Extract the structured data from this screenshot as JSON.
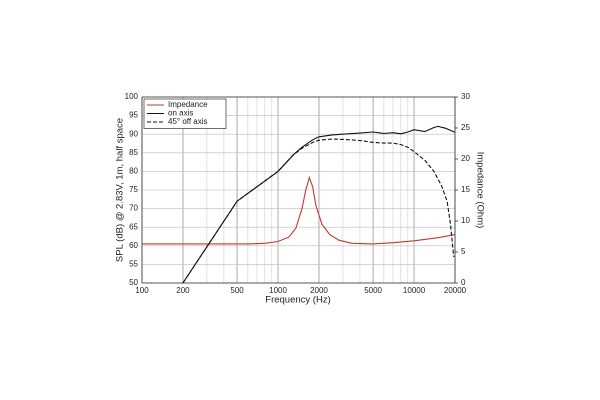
{
  "chart_data": {
    "type": "line",
    "xlabel": "Frequency (Hz)",
    "ylabel": "SPL (dB) @ 2.83V, 1m, half space",
    "y2label": "Impedance (Ohm)",
    "xscale": "log",
    "xlim": [
      100,
      20000
    ],
    "xticks": [
      100,
      200,
      500,
      1000,
      2000,
      5000,
      10000,
      20000
    ],
    "ylim": [
      50,
      100
    ],
    "yticks": [
      50,
      55,
      60,
      65,
      70,
      75,
      80,
      85,
      90,
      95,
      100
    ],
    "y2lim": [
      0,
      30
    ],
    "y2ticks": [
      0,
      5,
      10,
      15,
      20,
      25,
      30
    ],
    "grid": true,
    "legend": "upper left",
    "series": [
      {
        "name": "Impedance",
        "color": "#c0392b",
        "axis": "y2",
        "dash": false,
        "x": [
          100,
          300,
          600,
          800,
          1000,
          1200,
          1350,
          1500,
          1600,
          1700,
          1800,
          1900,
          2100,
          2400,
          2800,
          3500,
          5000,
          7000,
          10000,
          15000,
          20000
        ],
        "values": [
          6.3,
          6.3,
          6.3,
          6.4,
          6.7,
          7.4,
          8.8,
          12,
          15,
          17,
          15.5,
          12.5,
          9.5,
          7.8,
          6.9,
          6.4,
          6.3,
          6.5,
          6.8,
          7.3,
          7.8
        ]
      },
      {
        "name": "on axis",
        "color": "#111111",
        "axis": "y",
        "dash": false,
        "x": [
          200,
          500,
          1000,
          1300,
          1500,
          1800,
          2000,
          2500,
          3000,
          4000,
          5000,
          6000,
          7000,
          8000,
          9000,
          10000,
          12000,
          14000,
          15000,
          17000,
          20000
        ],
        "values": [
          50,
          72,
          80,
          84.5,
          86.5,
          88.5,
          89.3,
          89.8,
          90,
          90.3,
          90.6,
          90.2,
          90.4,
          90.1,
          90.6,
          91.2,
          90.7,
          91.8,
          92.1,
          91.6,
          90.5
        ]
      },
      {
        "name": "45° off axis",
        "color": "#111111",
        "axis": "y",
        "dash": true,
        "x": [
          200,
          500,
          1000,
          1300,
          1500,
          1800,
          2000,
          2500,
          3000,
          4000,
          5000,
          6000,
          7000,
          8000,
          9000,
          10000,
          12000,
          14000,
          16000,
          17500,
          18500,
          19200,
          19600
        ],
        "values": [
          50,
          72,
          80,
          84.5,
          86.2,
          87.8,
          88.4,
          88.7,
          88.6,
          88.3,
          87.8,
          87.6,
          87.6,
          87.2,
          86.5,
          85.3,
          83,
          80,
          76,
          72,
          66,
          60,
          57
        ]
      }
    ]
  }
}
